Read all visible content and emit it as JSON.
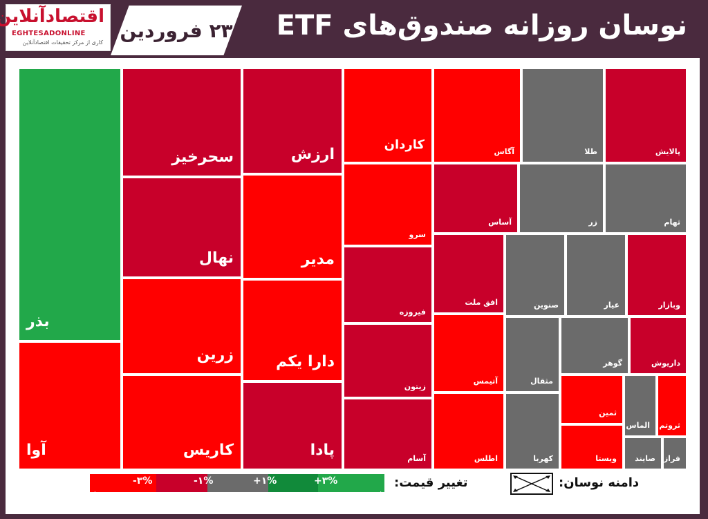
{
  "header": {
    "title": "نوسان روزانه صندوق‌های ETF",
    "date": "۲۳ فروردین",
    "logo_main": "اقتصادآنلاین",
    "logo_latin": "EGHTESADONLINE",
    "logo_tagline": "کاری از مرکز تحقیقات اقتصادآنلاین"
  },
  "legend": {
    "price_change_label": "تغییر قیمت:",
    "range_label": "دامنه نوسان:",
    "ticks": [
      "-۳%",
      "-۱%",
      "+۱%",
      "+۳%"
    ],
    "colors": [
      "#ff0000",
      "#c8002a",
      "#6b6b6b",
      "#118a3a",
      "#22a84a"
    ]
  },
  "chart_data": {
    "type": "treemap",
    "value_kind": "price_change_category",
    "categories": [
      "بیش از ۳% منفی",
      "۱% تا ۳% منفی",
      "بین -۱% و +۱%",
      "۱% تا ۳% مثبت",
      "بیش از ۳% مثبت"
    ],
    "colors_by_category": {
      "strong_negative": "#ff0000",
      "negative": "#c8002a",
      "neutral": "#6b6b6b",
      "positive": "#118a3a",
      "strong_positive": "#22a84a"
    },
    "cells": [
      {
        "name": "بذر",
        "category": "strong_positive",
        "label_size": "large"
      },
      {
        "name": "آوا",
        "category": "strong_negative",
        "label_size": "large"
      },
      {
        "name": "سحرخیز",
        "category": "negative",
        "label_size": "large"
      },
      {
        "name": "نهال",
        "category": "negative",
        "label_size": "large"
      },
      {
        "name": "زرین",
        "category": "strong_negative",
        "label_size": "large"
      },
      {
        "name": "کاریس",
        "category": "strong_negative",
        "label_size": "large"
      },
      {
        "name": "ارزش",
        "category": "negative",
        "label_size": "large"
      },
      {
        "name": "مدیر",
        "category": "strong_negative",
        "label_size": "large"
      },
      {
        "name": "دارا یکم",
        "category": "strong_negative",
        "label_size": "large"
      },
      {
        "name": "پادا",
        "category": "negative",
        "label_size": "large"
      },
      {
        "name": "کاردان",
        "category": "strong_negative",
        "label_size": "medium"
      },
      {
        "name": "سرو",
        "category": "strong_negative",
        "label_size": "small"
      },
      {
        "name": "فیروزه",
        "category": "negative",
        "label_size": "small"
      },
      {
        "name": "زیتون",
        "category": "negative",
        "label_size": "small"
      },
      {
        "name": "آسام",
        "category": "negative",
        "label_size": "small"
      },
      {
        "name": "آگاس",
        "category": "strong_negative",
        "label_size": "small"
      },
      {
        "name": "آساس",
        "category": "negative",
        "label_size": "small"
      },
      {
        "name": "افق ملت",
        "category": "negative",
        "label_size": "small"
      },
      {
        "name": "آتیمس",
        "category": "strong_negative",
        "label_size": "small"
      },
      {
        "name": "اطلس",
        "category": "strong_negative",
        "label_size": "small"
      },
      {
        "name": "طلا",
        "category": "neutral",
        "label_size": "small"
      },
      {
        "name": "پالایش",
        "category": "negative",
        "label_size": "small"
      },
      {
        "name": "زر",
        "category": "neutral",
        "label_size": "small"
      },
      {
        "name": "ثهام",
        "category": "neutral",
        "label_size": "small"
      },
      {
        "name": "صنوین",
        "category": "neutral",
        "label_size": "small"
      },
      {
        "name": "عیار",
        "category": "neutral",
        "label_size": "small"
      },
      {
        "name": "وبازار",
        "category": "negative",
        "label_size": "small"
      },
      {
        "name": "مثقال",
        "category": "neutral",
        "label_size": "small"
      },
      {
        "name": "گوهر",
        "category": "neutral",
        "label_size": "small"
      },
      {
        "name": "داریوش",
        "category": "negative",
        "label_size": "small"
      },
      {
        "name": "کهربا",
        "category": "neutral",
        "label_size": "small"
      },
      {
        "name": "ثمین",
        "category": "strong_negative",
        "label_size": "small"
      },
      {
        "name": "ویستا",
        "category": "strong_negative",
        "label_size": "small"
      },
      {
        "name": "الماس",
        "category": "neutral",
        "label_size": "small"
      },
      {
        "name": "ثروتم",
        "category": "strong_negative",
        "label_size": "small"
      },
      {
        "name": "صایند",
        "category": "neutral",
        "label_size": "small"
      },
      {
        "name": "فراز",
        "category": "neutral",
        "label_size": "small"
      }
    ]
  }
}
